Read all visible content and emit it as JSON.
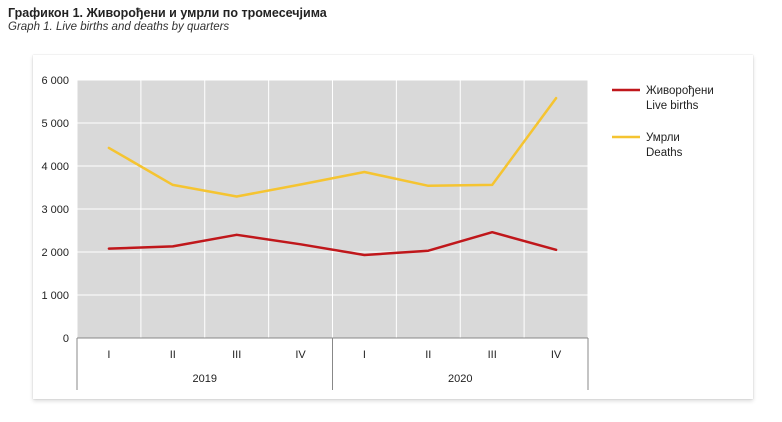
{
  "chart_data": {
    "type": "line",
    "title": "Графикон 1. Живорођени и умрли по тромесечјима",
    "subtitle": "Graph 1. Live births and deaths by quarters",
    "categories": [
      "I",
      "II",
      "III",
      "IV",
      "I",
      "II",
      "III",
      "IV"
    ],
    "groups": [
      {
        "label": "2019",
        "start": 0,
        "end": 3
      },
      {
        "label": "2020",
        "start": 4,
        "end": 7
      }
    ],
    "y_ticks": [
      "0",
      "1 000",
      "2 000",
      "3 000",
      "4 000",
      "5 000",
      "6 000"
    ],
    "ylim": [
      0,
      6000
    ],
    "grid": true,
    "legend_position": "right",
    "series": [
      {
        "name": "Живорођени",
        "name_en": "Live births",
        "color": "#c0171b",
        "values": [
          2080,
          2130,
          2400,
          2180,
          1930,
          2030,
          2460,
          2050
        ]
      },
      {
        "name": "Умрли",
        "name_en": "Deaths",
        "color": "#f5c431",
        "values": [
          4420,
          3560,
          3290,
          3570,
          3860,
          3540,
          3560,
          5580
        ]
      }
    ]
  }
}
